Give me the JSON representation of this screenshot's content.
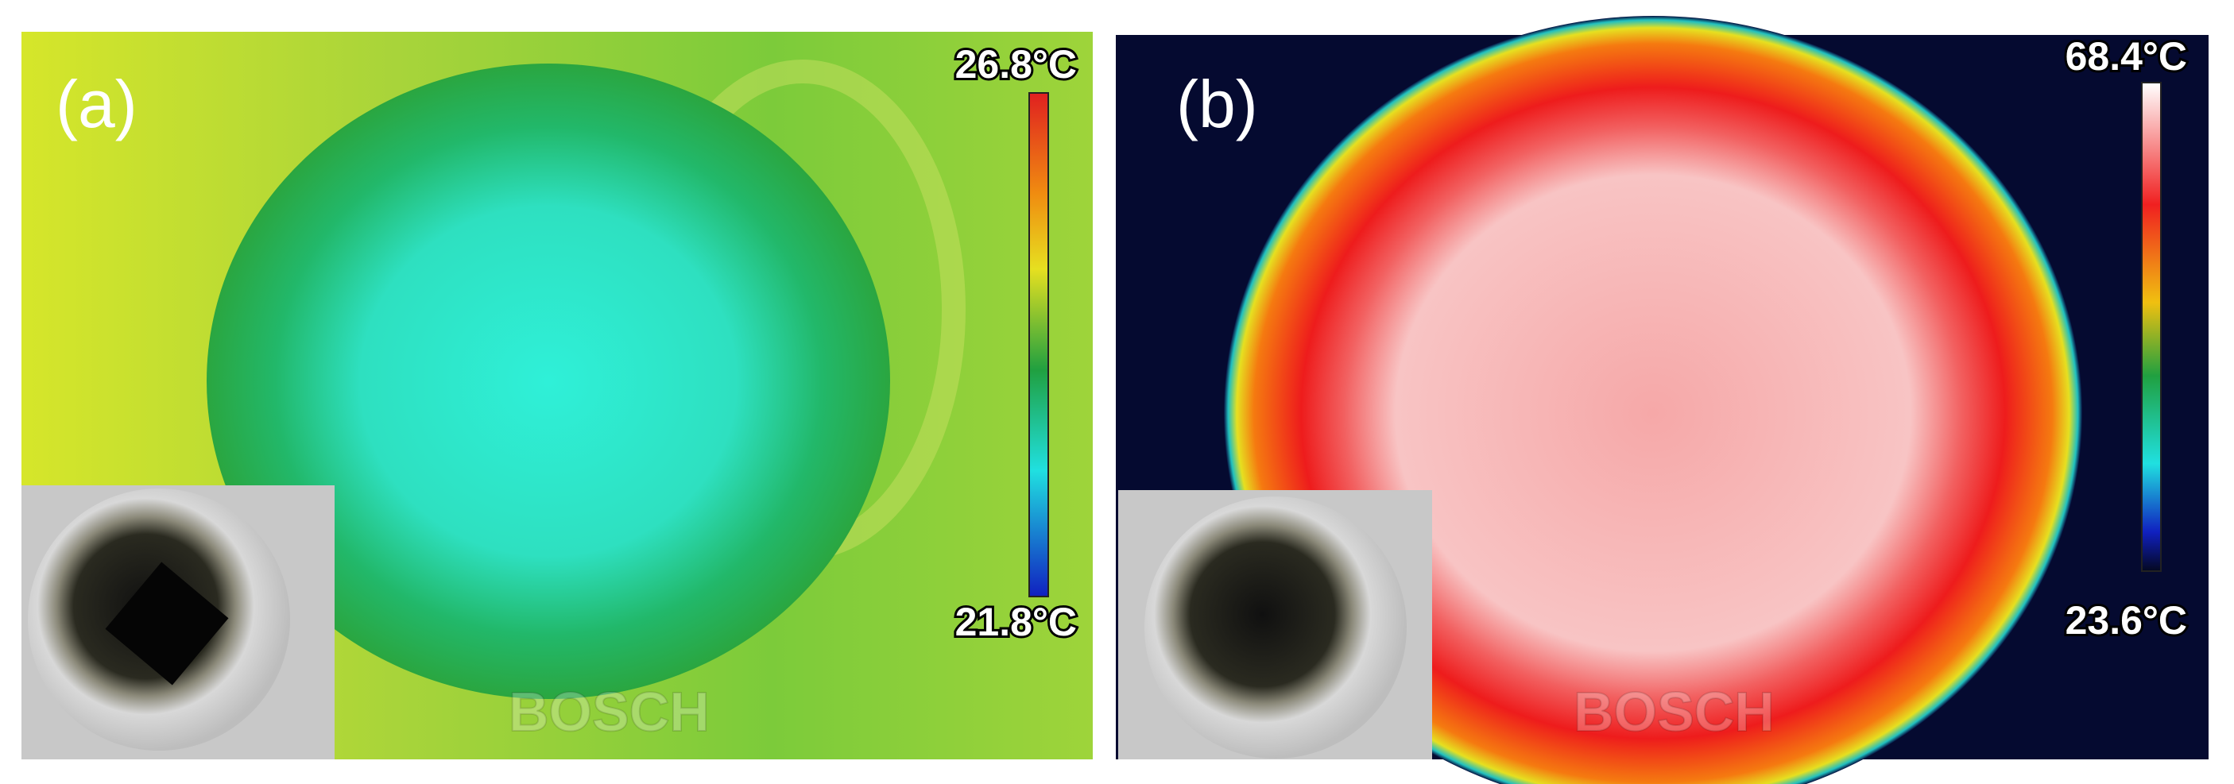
{
  "panels": [
    {
      "label": "(a)",
      "max_temp": "26.8°C",
      "min_temp": "21.8°C",
      "watermark": "BOSCH"
    },
    {
      "label": "(b)",
      "max_temp": "68.4°C",
      "min_temp": "23.6°C",
      "watermark": "BOSCH"
    }
  ]
}
